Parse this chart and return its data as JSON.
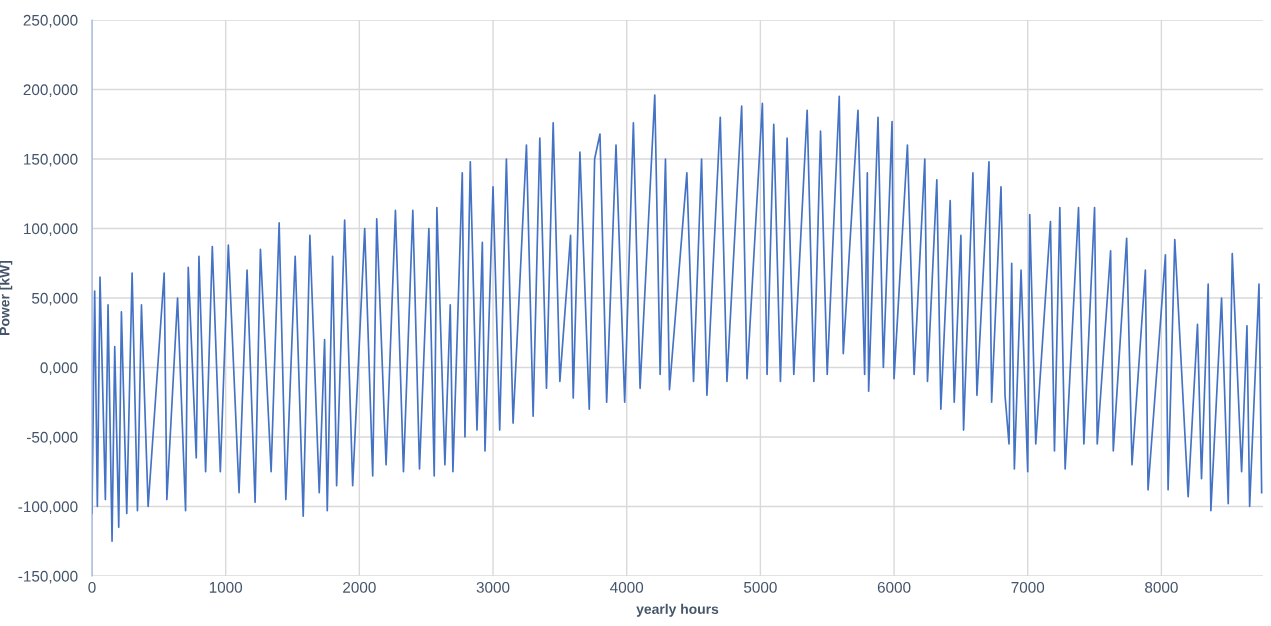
{
  "chart_data": {
    "type": "line",
    "xlabel": "yearly hours",
    "ylabel": "Power [kW]",
    "xlim": [
      0,
      8760
    ],
    "xticks": [
      0,
      1000,
      2000,
      3000,
      4000,
      5000,
      6000,
      7000,
      8000
    ],
    "ylim": [
      -150000,
      250000
    ],
    "yticks": [
      {
        "value": -150000,
        "label": "-150,000"
      },
      {
        "value": -100000,
        "label": "-100,000"
      },
      {
        "value": -50000,
        "label": "-50,000"
      },
      {
        "value": 0,
        "label": "0,000"
      },
      {
        "value": 50000,
        "label": "50,000"
      },
      {
        "value": 100000,
        "label": "100,000"
      },
      {
        "value": 150000,
        "label": "150,000"
      },
      {
        "value": 200000,
        "label": "200,000"
      },
      {
        "value": 250000,
        "label": "250,000"
      }
    ],
    "grid": true,
    "marker": "none",
    "line_style": "solid",
    "series": [
      {
        "color": "#4472c4",
        "x": [
          0,
          20,
          40,
          60,
          100,
          120,
          150,
          170,
          200,
          220,
          260,
          300,
          340,
          370,
          420,
          540,
          560,
          640,
          700,
          720,
          780,
          800,
          850,
          900,
          960,
          1020,
          1100,
          1160,
          1220,
          1260,
          1340,
          1400,
          1450,
          1520,
          1580,
          1630,
          1700,
          1740,
          1760,
          1800,
          1830,
          1890,
          1950,
          2040,
          2100,
          2130,
          2200,
          2270,
          2330,
          2400,
          2450,
          2520,
          2560,
          2580,
          2640,
          2680,
          2700,
          2770,
          2790,
          2830,
          2880,
          2920,
          2940,
          3000,
          3050,
          3100,
          3150,
          3250,
          3300,
          3350,
          3400,
          3450,
          3500,
          3580,
          3600,
          3650,
          3720,
          3760,
          3800,
          3850,
          3920,
          3985,
          4050,
          4100,
          4210,
          4250,
          4290,
          4320,
          4450,
          4500,
          4560,
          4600,
          4700,
          4750,
          4860,
          4900,
          5015,
          5050,
          5100,
          5150,
          5200,
          5250,
          5350,
          5400,
          5450,
          5500,
          5590,
          5620,
          5730,
          5780,
          5800,
          5810,
          5880,
          5920,
          5985,
          6000,
          6100,
          6150,
          6230,
          6250,
          6320,
          6350,
          6420,
          6450,
          6500,
          6520,
          6590,
          6620,
          6710,
          6730,
          6800,
          6830,
          6860,
          6880,
          6900,
          6950,
          7000,
          7015,
          7060,
          7170,
          7200,
          7240,
          7280,
          7380,
          7420,
          7500,
          7520,
          7620,
          7640,
          7740,
          7780,
          7880,
          7900,
          8030,
          8050,
          8100,
          8200,
          8270,
          8300,
          8350,
          8370,
          8450,
          8500,
          8530,
          8600,
          8640,
          8660,
          8730,
          8750
        ],
        "values": [
          -105000,
          55000,
          -100000,
          65000,
          -95000,
          45000,
          -125000,
          15000,
          -115000,
          40000,
          -105000,
          68000,
          -103000,
          45000,
          -100000,
          68000,
          -95000,
          50000,
          -103000,
          72000,
          -65000,
          80000,
          -75000,
          87000,
          -75000,
          88000,
          -90000,
          70000,
          -97000,
          85000,
          -75000,
          104000,
          -95000,
          80000,
          -107000,
          95000,
          -90000,
          20000,
          -103000,
          80000,
          -85000,
          106000,
          -85000,
          100000,
          -78000,
          107000,
          -70000,
          113000,
          -75000,
          113000,
          -73000,
          100000,
          -78000,
          115000,
          -70000,
          45000,
          -75000,
          140000,
          -50000,
          148000,
          -45000,
          90000,
          -60000,
          130000,
          -45000,
          150000,
          -40000,
          160000,
          -35000,
          165000,
          -15000,
          176000,
          -10000,
          95000,
          -22000,
          155000,
          -30000,
          150000,
          168000,
          -25000,
          160000,
          -25000,
          176000,
          -15000,
          196000,
          -5000,
          150000,
          -16000,
          140000,
          -10000,
          150000,
          -20000,
          180000,
          -10000,
          188000,
          -8000,
          190000,
          -5000,
          175000,
          -10000,
          165000,
          -5000,
          185000,
          -10000,
          170000,
          -5000,
          195000,
          10000,
          185000,
          -5000,
          140000,
          -17000,
          180000,
          0,
          177000,
          -8000,
          160000,
          -5000,
          150000,
          -10000,
          135000,
          -30000,
          120000,
          -25000,
          95000,
          -45000,
          140000,
          -20000,
          148000,
          -25000,
          130000,
          -20000,
          -55000,
          75000,
          -73000,
          70000,
          -75000,
          110000,
          -55000,
          105000,
          -60000,
          115000,
          -73000,
          115000,
          -55000,
          115000,
          -55000,
          84000,
          -60000,
          93000,
          -70000,
          70000,
          -88000,
          81000,
          -88000,
          92000,
          -93000,
          31000,
          -80000,
          60000,
          -103000,
          50000,
          -98000,
          82000,
          -75000,
          30000,
          -100000,
          60000,
          -90000
        ]
      }
    ]
  }
}
